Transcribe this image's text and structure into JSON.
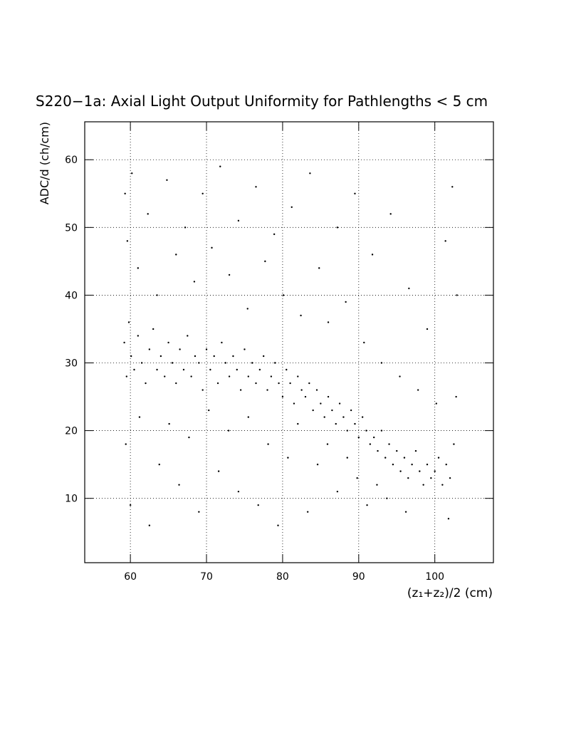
{
  "chart_data": {
    "type": "scatter",
    "title": "S220−1a: Axial Light Output Uniformity for Pathlengths < 5 cm",
    "x_label": "(z₁+z₂)/2 (cm)",
    "y_label": "ADC/d (ch/cm)",
    "xlim": [
      54,
      107.7
    ],
    "ylim": [
      0.5,
      65.6
    ],
    "xticks": [
      60,
      70,
      80,
      90,
      100
    ],
    "yticks": [
      10,
      20,
      30,
      40,
      50,
      60
    ],
    "grid": true,
    "color": "#000000",
    "x": [
      59.2,
      59.5,
      59.8,
      60.1,
      60.5,
      61,
      61.5,
      62,
      62.5,
      63,
      63.5,
      64,
      64.5,
      65,
      65.5,
      66,
      66.5,
      67,
      67.5,
      68,
      68.5,
      69,
      69.5,
      70,
      70.5,
      71,
      71.5,
      72,
      72.5,
      73,
      73.5,
      74,
      74.5,
      75,
      75.5,
      76,
      76.5,
      77,
      77.5,
      78,
      78.5,
      79,
      79.5,
      80,
      80.5,
      81,
      81.5,
      82,
      82.5,
      83,
      83.5,
      84,
      84.5,
      85,
      85.5,
      86,
      86.5,
      87,
      87.5,
      88,
      88.5,
      89,
      89.5,
      90,
      90.5,
      91,
      91.5,
      92,
      92.5,
      93,
      93.5,
      94,
      94.5,
      95,
      95.5,
      96,
      96.5,
      97,
      97.5,
      98,
      98.5,
      99,
      99.5,
      100,
      100.5,
      101,
      101.5,
      102,
      102.5,
      102.8,
      59.3,
      59.6,
      60.2,
      61,
      62.3,
      63.5,
      64.8,
      66,
      67.2,
      68.4,
      69.5,
      70.7,
      71.8,
      73,
      74.2,
      75.4,
      76.5,
      77.7,
      78.9,
      80.1,
      81.2,
      82.4,
      83.6,
      84.8,
      86,
      87.2,
      88.3,
      89.5,
      90.7,
      91.8,
      93,
      94.2,
      95.4,
      96.6,
      97.8,
      99,
      100.2,
      101.4,
      102.3,
      102.9,
      59.4,
      60,
      61.2,
      62.5,
      63.8,
      65.1,
      66.4,
      67.7,
      69,
      70.3,
      71.6,
      72.9,
      74.2,
      75.5,
      76.8,
      78.1,
      79.4,
      80.7,
      82,
      83.3,
      84.6,
      85.9,
      87.2,
      88.5,
      89.8,
      91.1,
      92.4,
      93.7,
      96.2,
      101.8
    ],
    "y": [
      33,
      28,
      36,
      31,
      29,
      34,
      30,
      27,
      32,
      35,
      29,
      31,
      28,
      33,
      30,
      27,
      32,
      29,
      34,
      28,
      31,
      30,
      26,
      32,
      29,
      31,
      27,
      33,
      30,
      28,
      31,
      29,
      26,
      32,
      28,
      30,
      27,
      29,
      31,
      26,
      28,
      30,
      27,
      25,
      29,
      27,
      24,
      28,
      26,
      25,
      27,
      23,
      26,
      24,
      22,
      25,
      23,
      21,
      24,
      22,
      20,
      23,
      21,
      19,
      22,
      20,
      18,
      19,
      17,
      20,
      16,
      18,
      15,
      17,
      14,
      16,
      13,
      15,
      17,
      14,
      12,
      15,
      13,
      14,
      16,
      12,
      15,
      13,
      18,
      25,
      55,
      48,
      58,
      44,
      52,
      40,
      57,
      46,
      50,
      42,
      55,
      47,
      59,
      43,
      51,
      38,
      56,
      45,
      49,
      40,
      53,
      37,
      58,
      44,
      36,
      50,
      39,
      55,
      33,
      46,
      30,
      52,
      28,
      41,
      26,
      35,
      24,
      48,
      56,
      40,
      18,
      9,
      22,
      6,
      15,
      21,
      12,
      19,
      8,
      23,
      14,
      20,
      11,
      22,
      9,
      18,
      6,
      16,
      21,
      8,
      15,
      18,
      11,
      16,
      13,
      9,
      12,
      10,
      8,
      7
    ]
  }
}
